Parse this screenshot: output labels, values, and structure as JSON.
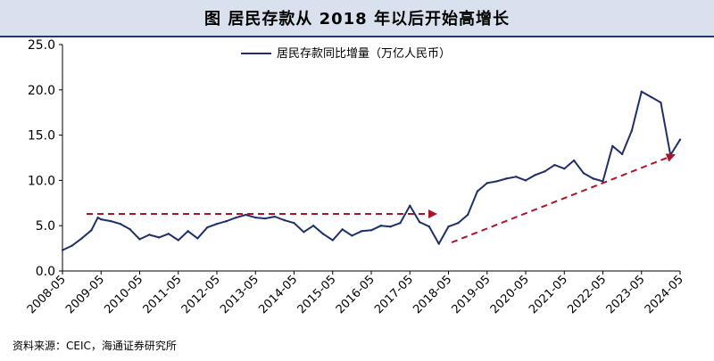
{
  "title": "图  居民存款从 2018 年以后开始高增长",
  "source": "资料来源：CEIC，海通证券研究所",
  "colors": {
    "series": "#1f2f6b",
    "arrow": "#b3112a",
    "title_band": "#d9e1ee",
    "title_rule": "#1f3a6b"
  },
  "chart_data": {
    "type": "line",
    "title": "图  居民存款从 2018 年以后开始高增长",
    "xlabel": "",
    "ylabel": "",
    "ylim": [
      0,
      25
    ],
    "yticks": [
      "0.0",
      "5.0",
      "10.0",
      "15.0",
      "20.0",
      "25.0"
    ],
    "xticks": [
      "2008-05",
      "2009-05",
      "2010-05",
      "2011-05",
      "2012-05",
      "2013-05",
      "2014-05",
      "2015-05",
      "2016-05",
      "2017-05",
      "2018-05",
      "2019-05",
      "2020-05",
      "2021-05",
      "2022-05",
      "2023-05",
      "2024-05"
    ],
    "grid": false,
    "legend": {
      "position": "top-center"
    },
    "series": [
      {
        "name": "居民存款同比增量（万亿人民币）",
        "x": [
          "2008-05",
          "2008-08",
          "2008-11",
          "2009-02",
          "2009-04",
          "2009-05",
          "2009-08",
          "2009-11",
          "2010-02",
          "2010-05",
          "2010-08",
          "2010-11",
          "2011-02",
          "2011-05",
          "2011-08",
          "2011-11",
          "2012-02",
          "2012-05",
          "2012-08",
          "2012-11",
          "2013-02",
          "2013-05",
          "2013-08",
          "2013-11",
          "2014-02",
          "2014-05",
          "2014-08",
          "2014-11",
          "2015-02",
          "2015-05",
          "2015-08",
          "2015-11",
          "2016-02",
          "2016-05",
          "2016-08",
          "2016-11",
          "2017-02",
          "2017-05",
          "2017-08",
          "2017-11",
          "2018-02",
          "2018-05",
          "2018-08",
          "2018-11",
          "2019-02",
          "2019-05",
          "2019-08",
          "2019-11",
          "2020-02",
          "2020-05",
          "2020-08",
          "2020-11",
          "2021-02",
          "2021-05",
          "2021-08",
          "2021-11",
          "2022-02",
          "2022-05",
          "2022-08",
          "2022-11",
          "2023-02",
          "2023-05",
          "2023-08",
          "2023-11",
          "2024-02",
          "2024-05"
        ],
        "values": [
          2.3,
          2.8,
          3.6,
          4.5,
          5.9,
          5.7,
          5.5,
          5.2,
          4.6,
          3.5,
          4.0,
          3.7,
          4.1,
          3.4,
          4.4,
          3.6,
          4.8,
          5.2,
          5.5,
          5.9,
          6.2,
          5.9,
          5.8,
          6.0,
          5.6,
          5.3,
          4.3,
          5.0,
          4.1,
          3.4,
          4.6,
          3.9,
          4.4,
          4.5,
          5.0,
          4.9,
          5.3,
          7.2,
          5.4,
          4.9,
          3.0,
          4.9,
          5.3,
          6.2,
          8.8,
          9.7,
          9.9,
          10.2,
          10.4,
          10.0,
          10.6,
          11.0,
          11.7,
          11.3,
          12.2,
          10.8,
          10.2,
          9.9,
          13.8,
          12.9,
          15.5,
          19.8,
          19.2,
          18.6,
          12.8,
          14.5
        ]
      }
    ]
  }
}
